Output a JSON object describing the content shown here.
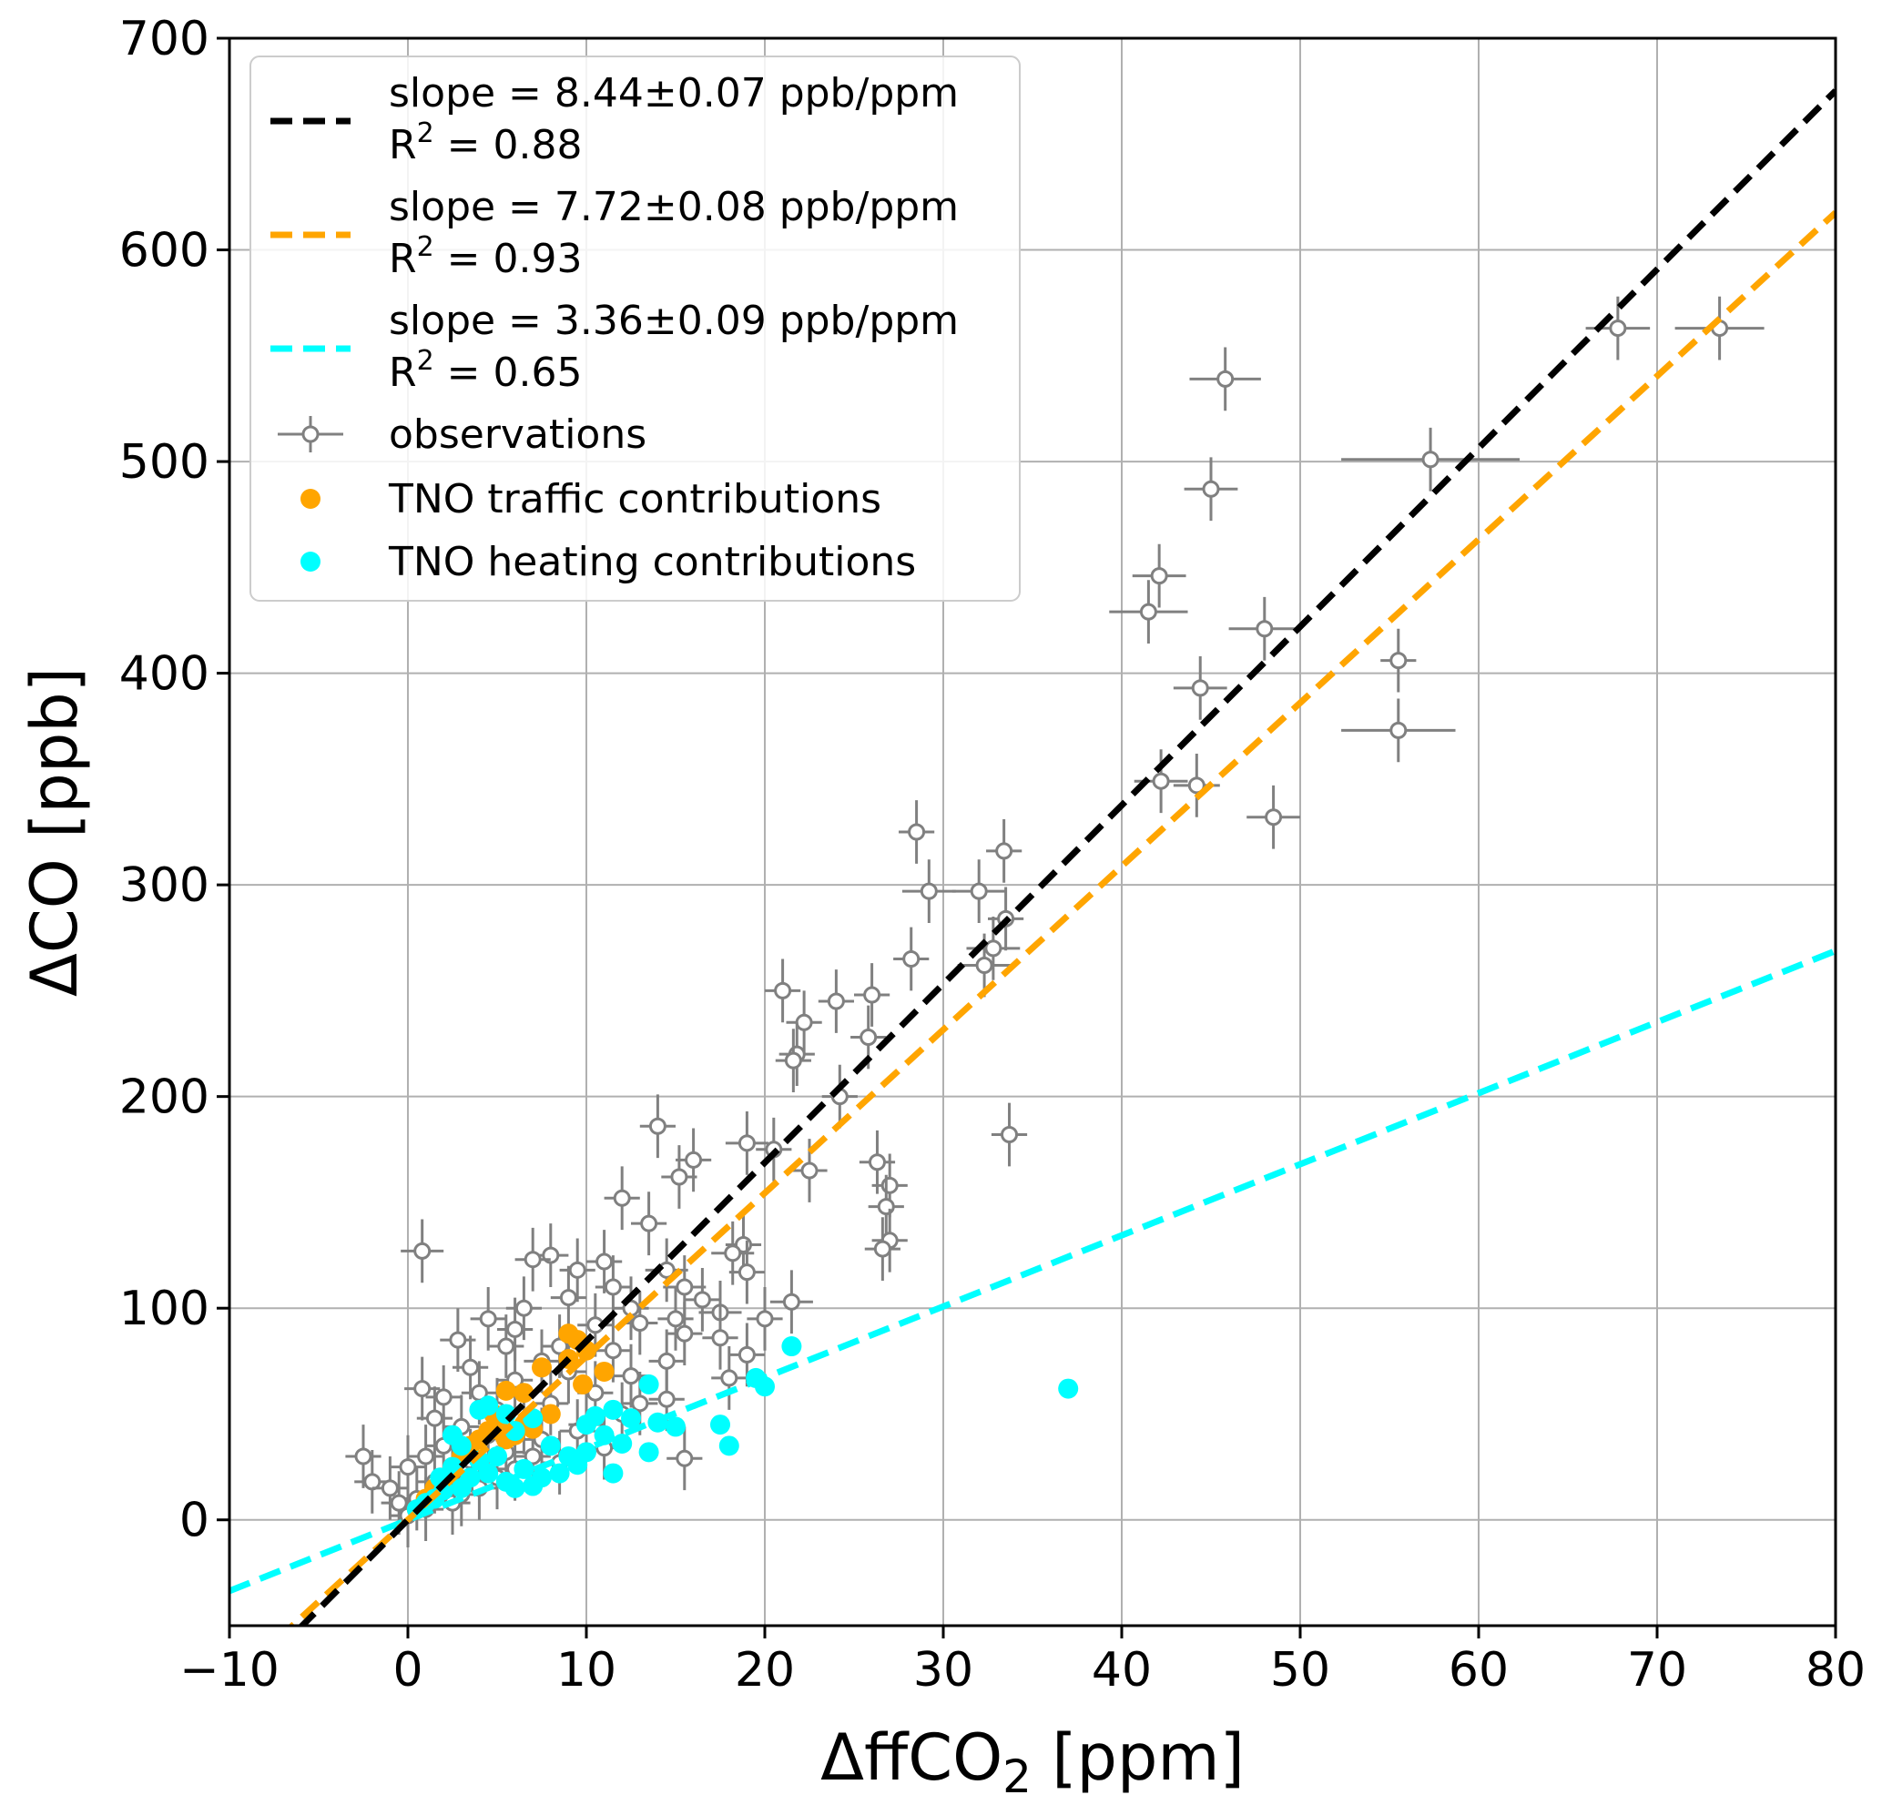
{
  "chart_data": {
    "type": "scatter",
    "title": "",
    "xlabel_prefix": "ΔffCO",
    "xlabel_sub": "2",
    "xlabel_suffix": " [ppm]",
    "ylabel": "ΔCO [ppb]",
    "xlim": [
      -10,
      80
    ],
    "ylim": [
      -50,
      700
    ],
    "xticks": [
      -10,
      0,
      10,
      20,
      30,
      40,
      50,
      60,
      70,
      80
    ],
    "xtick_labels": [
      "−10",
      "0",
      "10",
      "20",
      "30",
      "40",
      "50",
      "60",
      "70",
      "80"
    ],
    "yticks": [
      0,
      100,
      200,
      300,
      400,
      500,
      600,
      700
    ],
    "ytick_labels": [
      "0",
      "100",
      "200",
      "300",
      "400",
      "500",
      "600",
      "700"
    ],
    "grid": true,
    "legend_placement": "upper-left",
    "fit_lines": [
      {
        "slope_label": "slope = 8.44±0.07 ppb/ppm",
        "r2_prefix": "R",
        "r2_sup": "2",
        "r2_suffix": " = 0.88",
        "slope": 8.44,
        "intercept": 0,
        "color": "#000000"
      },
      {
        "slope_label": "slope = 7.72±0.08 ppb/ppm",
        "r2_prefix": "R",
        "r2_sup": "2",
        "r2_suffix": " = 0.93",
        "slope": 7.72,
        "intercept": 0,
        "color": "#ffa500"
      },
      {
        "slope_label": "slope = 3.36±0.09 ppb/ppm",
        "r2_prefix": "R",
        "r2_sup": "2",
        "r2_suffix": " = 0.65",
        "slope": 3.36,
        "intercept": 0,
        "color": "#00ffff"
      }
    ],
    "observations": {
      "name": "observations",
      "color": "#808080",
      "points": [
        [
          67.8,
          563,
          1.8,
          15
        ],
        [
          73.5,
          563,
          2.5,
          15
        ],
        [
          45.8,
          539,
          2,
          15
        ],
        [
          57.3,
          501,
          5,
          15
        ],
        [
          45.0,
          487,
          1.5,
          15
        ],
        [
          42.1,
          446,
          1.5,
          15
        ],
        [
          41.5,
          429,
          2.2,
          15
        ],
        [
          48.0,
          421,
          2,
          15
        ],
        [
          55.5,
          406,
          1,
          15
        ],
        [
          44.4,
          393,
          1.5,
          15
        ],
        [
          55.5,
          373,
          3.2,
          15
        ],
        [
          42.2,
          349,
          1.5,
          15
        ],
        [
          44.2,
          347,
          1.3,
          15
        ],
        [
          48.5,
          332,
          1.5,
          15
        ],
        [
          28.5,
          325,
          1,
          15
        ],
        [
          33.4,
          316,
          1,
          15
        ],
        [
          29.2,
          297,
          1.5,
          15
        ],
        [
          32.0,
          297,
          1.5,
          15
        ],
        [
          33.5,
          284,
          1,
          15
        ],
        [
          32.8,
          270,
          1.5,
          15
        ],
        [
          32.3,
          262,
          1.5,
          15
        ],
        [
          28.2,
          265,
          1,
          15
        ],
        [
          21.0,
          250,
          1,
          15
        ],
        [
          24.0,
          245,
          1,
          15
        ],
        [
          26.0,
          248,
          1,
          15
        ],
        [
          22.2,
          235,
          1,
          15
        ],
        [
          25.8,
          228,
          1,
          15
        ],
        [
          21.8,
          220,
          1,
          15
        ],
        [
          21.6,
          217,
          1,
          15
        ],
        [
          24.2,
          200,
          1,
          15
        ],
        [
          33.7,
          182,
          1,
          15
        ],
        [
          14.0,
          186,
          1,
          15
        ],
        [
          19.0,
          178,
          1.2,
          15
        ],
        [
          20.5,
          175,
          1,
          15
        ],
        [
          16.0,
          170,
          1,
          15
        ],
        [
          22.5,
          165,
          1,
          15
        ],
        [
          26.3,
          169,
          1,
          15
        ],
        [
          15.2,
          162,
          1,
          15
        ],
        [
          27.0,
          158,
          1,
          15
        ],
        [
          26.8,
          148,
          1,
          15
        ],
        [
          12.0,
          152,
          1,
          15
        ],
        [
          27.0,
          132,
          1,
          15
        ],
        [
          26.6,
          128,
          1,
          15
        ],
        [
          0.8,
          127,
          1.2,
          15
        ],
        [
          13.5,
          140,
          1,
          15
        ],
        [
          18.8,
          130,
          1,
          15
        ],
        [
          18.2,
          126,
          1.2,
          15
        ],
        [
          8.0,
          125,
          1,
          15
        ],
        [
          11.0,
          122,
          1,
          15
        ],
        [
          7.0,
          123,
          1,
          15
        ],
        [
          9.5,
          118,
          1,
          15
        ],
        [
          14.5,
          118,
          1.2,
          15
        ],
        [
          19.0,
          117,
          1,
          15
        ],
        [
          15.5,
          110,
          1.2,
          15
        ],
        [
          21.5,
          103,
          1.2,
          15
        ],
        [
          16.5,
          104,
          1,
          15
        ],
        [
          12.5,
          100,
          1,
          15
        ],
        [
          17.5,
          98,
          1.2,
          15
        ],
        [
          20.0,
          95,
          1,
          15
        ],
        [
          15.0,
          95,
          1,
          15
        ],
        [
          6.5,
          100,
          1,
          15
        ],
        [
          4.5,
          95,
          1,
          15
        ],
        [
          10.5,
          92,
          1,
          15
        ],
        [
          13.0,
          93,
          1,
          15
        ],
        [
          17.5,
          86,
          1,
          15
        ],
        [
          15.5,
          88,
          1,
          15
        ],
        [
          2.8,
          85,
          1,
          15
        ],
        [
          8.5,
          82,
          1,
          15
        ],
        [
          5.5,
          82,
          1,
          15
        ],
        [
          11.5,
          80,
          1,
          15
        ],
        [
          19.0,
          78,
          1,
          15
        ],
        [
          7.5,
          75,
          1,
          15
        ],
        [
          14.5,
          75,
          1,
          15
        ],
        [
          3.5,
          72,
          1,
          15
        ],
        [
          9.0,
          70,
          1,
          15
        ],
        [
          12.5,
          68,
          1,
          15
        ],
        [
          18.0,
          67,
          1,
          15
        ],
        [
          6.0,
          66,
          1,
          15
        ],
        [
          0.8,
          62,
          1,
          15
        ],
        [
          4.0,
          60,
          1,
          15
        ],
        [
          10.5,
          60,
          1,
          15
        ],
        [
          2.0,
          58,
          1,
          15
        ],
        [
          14.5,
          57,
          1,
          15
        ],
        [
          8.0,
          55,
          1,
          15
        ],
        [
          5.0,
          52,
          1,
          15
        ],
        [
          12.0,
          50,
          1,
          15
        ],
        [
          1.5,
          48,
          1,
          15
        ],
        [
          6.5,
          46,
          1,
          15
        ],
        [
          3.0,
          44,
          1,
          15
        ],
        [
          9.5,
          42,
          1,
          15
        ],
        [
          4.5,
          40,
          1,
          15
        ],
        [
          7.5,
          38,
          1,
          15
        ],
        [
          2.0,
          35,
          1,
          15
        ],
        [
          11.0,
          34,
          1,
          15
        ],
        [
          5.5,
          32,
          1,
          15
        ],
        [
          -2.5,
          30,
          1,
          15
        ],
        [
          -2.0,
          18,
          1,
          15
        ],
        [
          1.0,
          30,
          1,
          15
        ],
        [
          3.5,
          28,
          1,
          15
        ],
        [
          15.5,
          29,
          1,
          15
        ],
        [
          8.5,
          27,
          1,
          15
        ],
        [
          0.0,
          25,
          1,
          15
        ],
        [
          2.5,
          22,
          1,
          15
        ],
        [
          6.0,
          24,
          1,
          15
        ],
        [
          -1.0,
          15,
          1,
          15
        ],
        [
          1.5,
          18,
          1,
          15
        ],
        [
          4.0,
          15,
          1,
          15
        ],
        [
          0.5,
          10,
          1,
          15
        ],
        [
          2.5,
          8,
          1,
          15
        ],
        [
          -0.5,
          8,
          1,
          15
        ],
        [
          1.0,
          5,
          1,
          15
        ],
        [
          3.0,
          12,
          1,
          15
        ],
        [
          0.0,
          2,
          1,
          15
        ],
        [
          5.0,
          20,
          1,
          15
        ],
        [
          7.0,
          30,
          1,
          15
        ],
        [
          10.0,
          45,
          1,
          15
        ],
        [
          13.0,
          55,
          1,
          15
        ],
        [
          11.5,
          110,
          1,
          15
        ],
        [
          9.0,
          105,
          1,
          15
        ],
        [
          6.0,
          90,
          1,
          15
        ]
      ]
    },
    "traffic": {
      "name": "TNO traffic contributions",
      "color": "#ffa500",
      "points": [
        [
          9.0,
          88
        ],
        [
          9.5,
          85
        ],
        [
          10.0,
          80
        ],
        [
          9.0,
          76
        ],
        [
          7.5,
          72
        ],
        [
          11.0,
          70
        ],
        [
          9.8,
          64
        ],
        [
          6.5,
          60
        ],
        [
          5.5,
          61
        ],
        [
          4.5,
          42
        ],
        [
          5.0,
          45
        ],
        [
          6.0,
          40
        ],
        [
          7.0,
          43
        ],
        [
          4.0,
          38
        ],
        [
          3.5,
          35
        ],
        [
          5.5,
          38
        ],
        [
          6.5,
          45
        ],
        [
          8.0,
          50
        ],
        [
          3.0,
          30
        ],
        [
          2.5,
          25
        ],
        [
          2.0,
          20
        ],
        [
          1.5,
          15
        ],
        [
          1.0,
          10
        ],
        [
          0.5,
          5
        ],
        [
          4.8,
          50
        ]
      ]
    },
    "heating": {
      "name": "TNO heating contributions",
      "color": "#00ffff",
      "points": [
        [
          21.5,
          82
        ],
        [
          37.0,
          62
        ],
        [
          19.5,
          67
        ],
        [
          20.0,
          63
        ],
        [
          13.5,
          64
        ],
        [
          17.5,
          45
        ],
        [
          18.0,
          35
        ],
        [
          14.0,
          46
        ],
        [
          15.0,
          44
        ],
        [
          12.5,
          48
        ],
        [
          11.5,
          52
        ],
        [
          10.5,
          49
        ],
        [
          10.0,
          45
        ],
        [
          11.0,
          40
        ],
        [
          12.0,
          36
        ],
        [
          13.5,
          32
        ],
        [
          11.5,
          22
        ],
        [
          4.0,
          52
        ],
        [
          4.5,
          54
        ],
        [
          5.5,
          50
        ],
        [
          7.0,
          48
        ],
        [
          6.0,
          42
        ],
        [
          2.5,
          40
        ],
        [
          3.0,
          35
        ],
        [
          8.0,
          35
        ],
        [
          9.0,
          30
        ],
        [
          9.5,
          26
        ],
        [
          10.0,
          32
        ],
        [
          8.5,
          22
        ],
        [
          7.5,
          20
        ],
        [
          6.5,
          24
        ],
        [
          5.5,
          18
        ],
        [
          4.5,
          22
        ],
        [
          3.5,
          20
        ],
        [
          3.0,
          15
        ],
        [
          2.0,
          14
        ],
        [
          1.5,
          10
        ],
        [
          1.0,
          8
        ],
        [
          0.5,
          5
        ],
        [
          2.5,
          25
        ],
        [
          4.0,
          28
        ],
        [
          5.0,
          30
        ],
        [
          6.0,
          15
        ],
        [
          7.0,
          16
        ],
        [
          1.8,
          20
        ]
      ]
    }
  }
}
